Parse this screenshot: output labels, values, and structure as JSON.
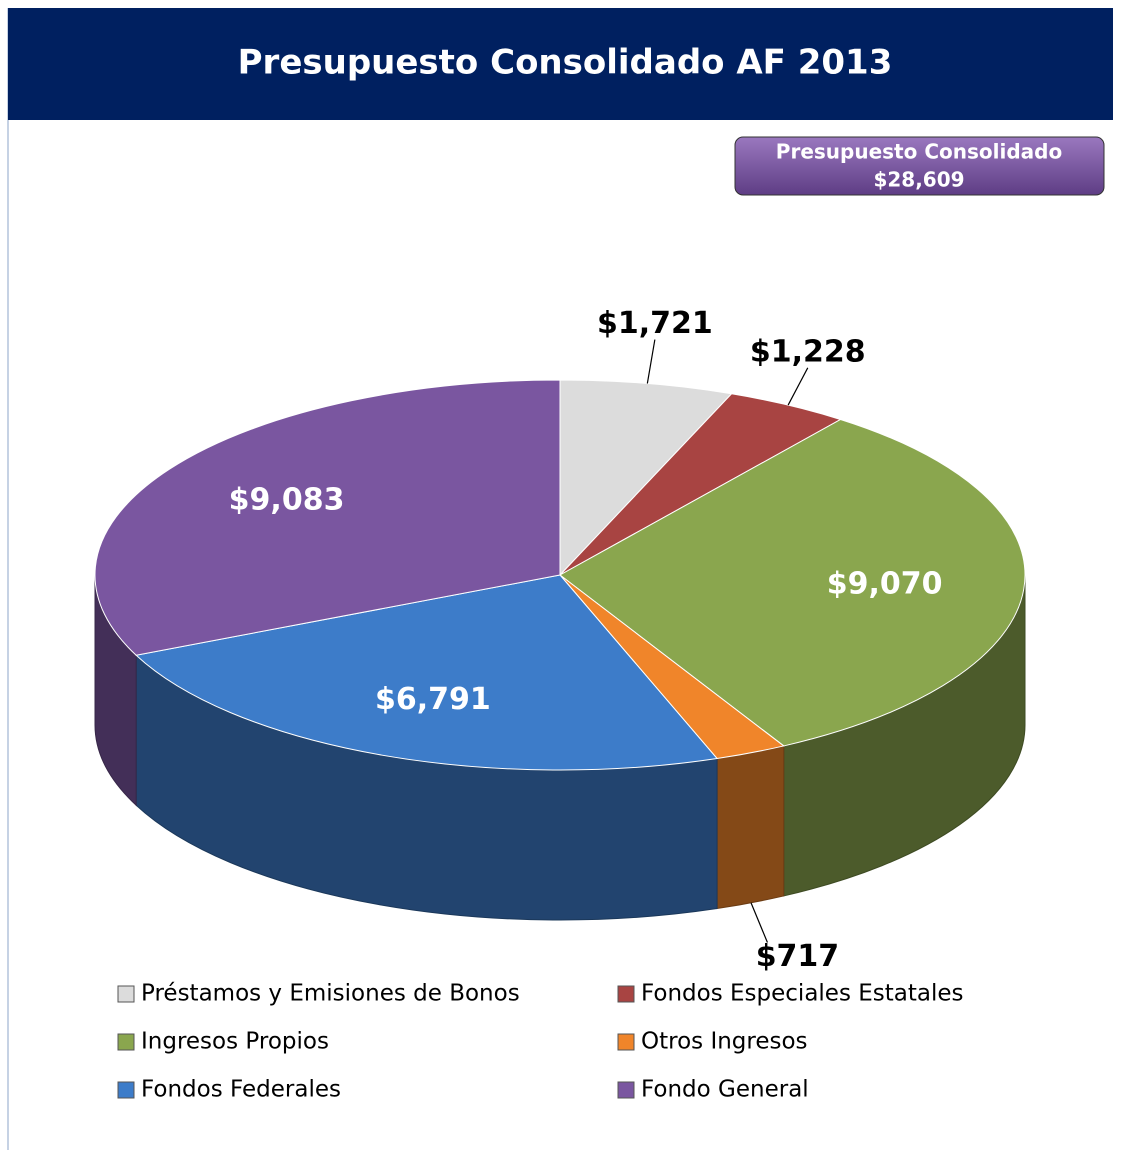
{
  "chart_data": {
    "type": "pie3d",
    "title": "Presupuesto Consolidado AF 2013",
    "total_caption": "Presupuesto Consolidado",
    "total_text": "$28,609",
    "categories": [
      "Préstamos y Emisiones de Bonos",
      "Fondos Especiales Estatales",
      "Ingresos Propios",
      "Otros Ingresos",
      "Fondos Federales",
      "Fondo General"
    ],
    "values": [
      1721,
      1228,
      9070,
      717,
      6791,
      9083
    ],
    "value_labels": [
      "$1,721",
      "$1,228",
      "$9,070",
      "$717",
      "$6,791",
      "$9,083"
    ],
    "colors": [
      "#dcdcdc",
      "#a84442",
      "#8aa64e",
      "#f0852a",
      "#3d7cc9",
      "#7a56a0"
    ]
  }
}
